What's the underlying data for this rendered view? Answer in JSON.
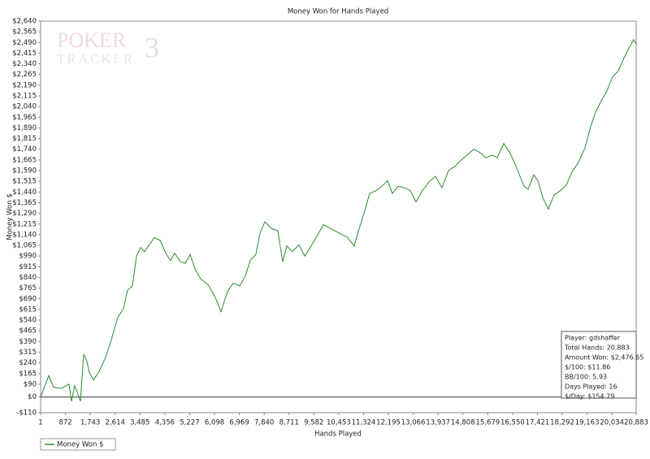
{
  "chart_data": {
    "type": "line",
    "title": "Money Won for Hands Played",
    "xlabel": "Hands Played",
    "ylabel": "Money Won $",
    "watermark": [
      "POKER",
      "TRACKER",
      "3"
    ],
    "xlim": [
      1,
      20883
    ],
    "ylim": [
      -110,
      2640
    ],
    "grid": false,
    "zero_line": true,
    "legend": "bottom-left",
    "xticks": [
      1,
      872,
      {
        "value": 1743,
        "label": "1,743"
      },
      {
        "value": 2614,
        "label": "2,614"
      },
      {
        "value": 3485,
        "label": "3,485"
      },
      {
        "value": 4356,
        "label": "4,356"
      },
      {
        "value": 5227,
        "label": "5,227"
      },
      {
        "value": 6098,
        "label": "6,098"
      },
      {
        "value": 6969,
        "label": "6,969"
      },
      {
        "value": 7840,
        "label": "7,840"
      },
      {
        "value": 8711,
        "label": "8,711"
      },
      {
        "value": 9582,
        "label": "9,582"
      },
      {
        "value": 10453,
        "label": "10,453"
      },
      {
        "value": 11324,
        "label": "11,324"
      },
      {
        "value": 12195,
        "label": "12,195"
      },
      {
        "value": 13066,
        "label": "13,066"
      },
      {
        "value": 13937,
        "label": "13,937"
      },
      {
        "value": 14808,
        "label": "14,808"
      },
      {
        "value": 15679,
        "label": "15,679"
      },
      {
        "value": 16550,
        "label": "16,550"
      },
      {
        "value": 17421,
        "label": "17,421"
      },
      {
        "value": 18292,
        "label": "18,292"
      },
      {
        "value": 19163,
        "label": "19,163"
      },
      {
        "value": 20034,
        "label": "20,034"
      },
      {
        "value": 20883,
        "label": "20,883"
      }
    ],
    "yticks": [
      {
        "value": -110,
        "label": "-$110"
      },
      {
        "value": 0,
        "label": "$0"
      },
      {
        "value": 90,
        "label": "$90"
      },
      {
        "value": 165,
        "label": "$165"
      },
      {
        "value": 240,
        "label": "$240"
      },
      {
        "value": 315,
        "label": "$315"
      },
      {
        "value": 390,
        "label": "$390"
      },
      {
        "value": 465,
        "label": "$465"
      },
      {
        "value": 540,
        "label": "$540"
      },
      {
        "value": 615,
        "label": "$615"
      },
      {
        "value": 690,
        "label": "$690"
      },
      {
        "value": 765,
        "label": "$765"
      },
      {
        "value": 840,
        "label": "$840"
      },
      {
        "value": 915,
        "label": "$915"
      },
      {
        "value": 990,
        "label": "$990"
      },
      {
        "value": 1065,
        "label": "$1,065"
      },
      {
        "value": 1140,
        "label": "$1,140"
      },
      {
        "value": 1215,
        "label": "$1,215"
      },
      {
        "value": 1290,
        "label": "$1,290"
      },
      {
        "value": 1365,
        "label": "$1,365"
      },
      {
        "value": 1440,
        "label": "$1,440"
      },
      {
        "value": 1515,
        "label": "$1,515"
      },
      {
        "value": 1590,
        "label": "$1,590"
      },
      {
        "value": 1665,
        "label": "$1,665"
      },
      {
        "value": 1740,
        "label": "$1,740"
      },
      {
        "value": 1815,
        "label": "$1,815"
      },
      {
        "value": 1890,
        "label": "$1,890"
      },
      {
        "value": 1965,
        "label": "$1,965"
      },
      {
        "value": 2040,
        "label": "$2,040"
      },
      {
        "value": 2115,
        "label": "$2,115"
      },
      {
        "value": 2190,
        "label": "$2,190"
      },
      {
        "value": 2265,
        "label": "$2,265"
      },
      {
        "value": 2340,
        "label": "$2,340"
      },
      {
        "value": 2415,
        "label": "$2,415"
      },
      {
        "value": 2490,
        "label": "$2,490"
      },
      {
        "value": 2565,
        "label": "$2,565"
      },
      {
        "value": 2640,
        "label": "$2,640"
      }
    ],
    "x": [
      1,
      285,
      456,
      712,
      997,
      1083,
      1196,
      1310,
      1396,
      1510,
      1624,
      1709,
      1852,
      2051,
      2279,
      2478,
      2706,
      2906,
      3048,
      3219,
      3362,
      3504,
      3646,
      3846,
      3988,
      4188,
      4416,
      4558,
      4700,
      4900,
      5071,
      5242,
      5413,
      5612,
      5869,
      6125,
      6324,
      6552,
      6752,
      6980,
      7179,
      7350,
      7549,
      7692,
      7863,
      8119,
      8318,
      8489,
      8632,
      8831,
      9059,
      9259,
      9487,
      9686,
      9914,
      10199,
      10484,
      10768,
      10996,
      11167,
      11338,
      11538,
      11766,
      11965,
      12164,
      12335,
      12535,
      12763,
      12962,
      13162,
      13389,
      13617,
      13845,
      14073,
      14301,
      14529,
      14728,
      14956,
      15184,
      15384,
      15611,
      15839,
      16010,
      16238,
      16438,
      16609,
      16808,
      16950,
      17093,
      17292,
      17435,
      17606,
      17805,
      18004,
      18232,
      18432,
      18631,
      18859,
      19087,
      19287,
      19457,
      19657,
      19856,
      20056,
      20255,
      20454,
      20654,
      20796,
      20883
    ],
    "series": [
      {
        "name": "Money Won $",
        "color": "#2e8b2e",
        "values": [
          0,
          150,
          70,
          60,
          90,
          -30,
          80,
          20,
          -30,
          300,
          250,
          170,
          120,
          180,
          280,
          400,
          560,
          620,
          750,
          780,
          990,
          1050,
          1020,
          1080,
          1120,
          1100,
          1000,
          960,
          1010,
          950,
          940,
          1000,
          900,
          830,
          790,
          700,
          600,
          740,
          800,
          780,
          850,
          960,
          1000,
          1150,
          1230,
          1180,
          1170,
          950,
          1060,
          1020,
          1070,
          990,
          1060,
          1130,
          1210,
          1180,
          1150,
          1120,
          1060,
          1180,
          1290,
          1430,
          1450,
          1480,
          1520,
          1430,
          1480,
          1470,
          1450,
          1370,
          1450,
          1510,
          1550,
          1470,
          1590,
          1620,
          1660,
          1700,
          1740,
          1720,
          1680,
          1700,
          1680,
          1780,
          1720,
          1650,
          1550,
          1480,
          1460,
          1560,
          1520,
          1400,
          1320,
          1420,
          1450,
          1490,
          1580,
          1650,
          1750,
          1900,
          2000,
          2080,
          2150,
          2250,
          2290,
          2380,
          2460,
          2510,
          2480
        ]
      }
    ],
    "info_box": [
      "Player: gdshaffer",
      "Total Hands: 20,883",
      "Amount Won: $2,476.65",
      "$/100: $11.86",
      "BB/100: 5.93",
      "Days Played: 16",
      "$/Day: $154.79"
    ]
  }
}
